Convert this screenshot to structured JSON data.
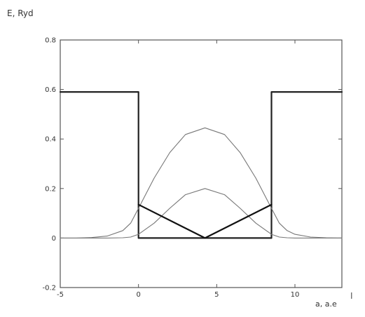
{
  "chart_data": {
    "type": "line",
    "title": "",
    "ylabel": "E, Ryd",
    "xlabel": "a, a.e",
    "cursor_mark": "I",
    "xlim": [
      -5,
      13
    ],
    "ylim": [
      -0.2,
      0.8
    ],
    "xticks": [
      -5,
      0,
      5,
      10
    ],
    "xtick_labels": [
      "-5",
      "0",
      "5",
      "10"
    ],
    "yticks": [
      -0.2,
      0,
      0.2,
      0.4,
      0.6,
      0.8
    ],
    "ytick_labels": [
      "-0.2",
      "0",
      "0.2",
      "0.4",
      "0.6",
      "0.8"
    ],
    "grid": false,
    "legend": "none",
    "series": [
      {
        "color": "#222222",
        "weight": "thick",
        "x": [
          -5,
          0,
          0,
          8.5,
          8.5,
          13
        ],
        "y": [
          0.59,
          0.59,
          0,
          0,
          0.59,
          0.59
        ]
      },
      {
        "color": "#777777",
        "weight": "thin",
        "x": [
          -5,
          -4,
          -3,
          -2,
          -1,
          -0.5,
          0,
          1,
          2,
          3,
          4.25,
          5.5,
          6.5,
          7.5,
          8.5,
          9,
          9.5,
          10,
          11,
          12,
          13
        ],
        "y": [
          0.0,
          0.0,
          0.002,
          0.008,
          0.03,
          0.06,
          0.12,
          0.242,
          0.345,
          0.418,
          0.445,
          0.418,
          0.345,
          0.242,
          0.12,
          0.06,
          0.03,
          0.015,
          0.004,
          0.001,
          0.0
        ]
      },
      {
        "color": "#777777",
        "weight": "thin",
        "x": [
          -5,
          -2,
          -1,
          -0.5,
          0,
          1,
          2,
          3,
          4.25,
          5.5,
          6.5,
          7.5,
          8.5,
          9,
          9.5,
          10,
          13
        ],
        "y": [
          0.0,
          0.0,
          0.001,
          0.004,
          0.015,
          0.06,
          0.12,
          0.175,
          0.2,
          0.175,
          0.12,
          0.06,
          0.015,
          0.004,
          0.001,
          0.0,
          0.0
        ]
      },
      {
        "color": "#111111",
        "weight": "thick",
        "x": [
          0,
          4.25,
          8.5
        ],
        "y": [
          0.135,
          0.0,
          0.135
        ]
      }
    ]
  }
}
